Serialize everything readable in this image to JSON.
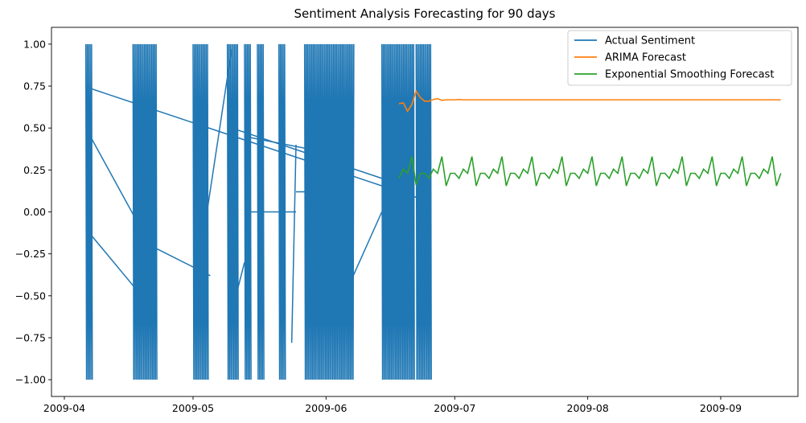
{
  "chart_data": {
    "type": "line",
    "title": "Sentiment Analysis Forecasting for 90 days",
    "xlabel": "",
    "ylabel": "",
    "x_axis": {
      "type": "date",
      "range": [
        "2009-03-29",
        "2009-09-19"
      ],
      "ticks": [
        {
          "date": "2009-04-01",
          "label": "2009-04"
        },
        {
          "date": "2009-05-01",
          "label": "2009-05"
        },
        {
          "date": "2009-06-01",
          "label": "2009-06"
        },
        {
          "date": "2009-07-01",
          "label": "2009-07"
        },
        {
          "date": "2009-08-01",
          "label": "2009-08"
        },
        {
          "date": "2009-09-01",
          "label": "2009-09"
        }
      ]
    },
    "y_axis": {
      "range": [
        -1.1,
        1.1
      ],
      "ticks": [
        {
          "value": 1.0,
          "label": "1.00"
        },
        {
          "value": 0.75,
          "label": "0.75"
        },
        {
          "value": 0.5,
          "label": "0.50"
        },
        {
          "value": 0.25,
          "label": "0.25"
        },
        {
          "value": 0.0,
          "label": "0.00"
        },
        {
          "value": -0.25,
          "label": "−0.25"
        },
        {
          "value": -0.5,
          "label": "−0.50"
        },
        {
          "value": -0.75,
          "label": "−0.75"
        },
        {
          "value": -1.0,
          "label": "−1.00"
        }
      ]
    },
    "grid": false,
    "legend_position": "top-right",
    "series": [
      {
        "name": "Actual Sentiment",
        "color": "#1f77b4",
        "style": "dense-oscillation",
        "active_periods": [
          {
            "start": "2009-04-06",
            "end": "2009-04-07"
          },
          {
            "start": "2009-04-17",
            "end": "2009-04-22"
          },
          {
            "start": "2009-05-01",
            "end": "2009-05-04"
          },
          {
            "start": "2009-05-09",
            "end": "2009-05-11"
          },
          {
            "start": "2009-05-13",
            "end": "2009-05-14"
          },
          {
            "start": "2009-05-16",
            "end": "2009-05-17"
          },
          {
            "start": "2009-05-21",
            "end": "2009-05-22"
          },
          {
            "start": "2009-05-27",
            "end": "2009-06-07"
          },
          {
            "start": "2009-06-14",
            "end": "2009-06-21"
          },
          {
            "start": "2009-06-22",
            "end": "2009-06-25"
          }
        ],
        "connectors": [
          {
            "x": [
              "2009-04-06",
              "2009-06-24"
            ],
            "y": [
              0.745,
              0.07
            ]
          },
          {
            "x": [
              "2009-04-06",
              "2009-04-21"
            ],
            "y": [
              0.5,
              -0.2
            ]
          },
          {
            "x": [
              "2009-04-06",
              "2009-04-19"
            ],
            "y": [
              -0.1,
              -0.5
            ]
          },
          {
            "x": [
              "2009-04-21",
              "2009-05-05"
            ],
            "y": [
              -0.2,
              -0.38
            ]
          },
          {
            "x": [
              "2009-05-02",
              "2009-05-10"
            ],
            "y": [
              -0.38,
              0.97
            ]
          },
          {
            "x": [
              "2009-05-10",
              "2009-06-14"
            ],
            "y": [
              0.5,
              0.2
            ]
          },
          {
            "x": [
              "2009-05-13",
              "2009-05-29"
            ],
            "y": [
              0.45,
              0.37
            ]
          },
          {
            "x": [
              "2009-05-13",
              "2009-05-25"
            ],
            "y": [
              0.0,
              0.0
            ]
          },
          {
            "x": [
              "2009-05-25",
              "2009-06-06"
            ],
            "y": [
              0.12,
              0.12
            ]
          },
          {
            "x": [
              "2009-05-24",
              "2009-05-25"
            ],
            "y": [
              -0.78,
              0.4
            ]
          },
          {
            "x": [
              "2009-06-07",
              "2009-06-14"
            ],
            "y": [
              -0.4,
              0.0
            ]
          },
          {
            "x": [
              "2009-05-10",
              "2009-05-13"
            ],
            "y": [
              -0.6,
              -0.3
            ]
          }
        ]
      },
      {
        "name": "ARIMA Forecast",
        "color": "#ff7f0e",
        "x_start": "2009-06-18",
        "step_days": 1,
        "values": [
          0.645,
          0.65,
          0.6,
          0.64,
          0.72,
          0.68,
          0.66,
          0.66,
          0.67,
          0.675,
          0.665,
          0.668,
          0.668,
          0.668,
          0.67,
          0.668,
          0.668,
          0.668,
          0.668,
          0.668,
          0.668,
          0.668,
          0.668,
          0.668,
          0.668,
          0.668,
          0.668,
          0.668,
          0.668,
          0.668,
          0.668,
          0.668,
          0.668,
          0.668,
          0.668,
          0.668,
          0.668,
          0.668,
          0.668,
          0.668,
          0.668,
          0.668,
          0.668,
          0.668,
          0.668,
          0.668,
          0.668,
          0.668,
          0.668,
          0.668,
          0.668,
          0.668,
          0.668,
          0.668,
          0.668,
          0.668,
          0.668,
          0.668,
          0.668,
          0.668,
          0.668,
          0.668,
          0.668,
          0.668,
          0.668,
          0.668,
          0.668,
          0.668,
          0.668,
          0.668,
          0.668,
          0.668,
          0.668,
          0.668,
          0.668,
          0.668,
          0.668,
          0.668,
          0.668,
          0.668,
          0.668,
          0.668,
          0.668,
          0.668,
          0.668,
          0.668,
          0.668,
          0.668,
          0.668,
          0.668
        ]
      },
      {
        "name": "Exponential Smoothing Forecast",
        "color": "#2ca02c",
        "x_start": "2009-06-18",
        "step_days": 1,
        "values": [
          0.2,
          0.255,
          0.23,
          0.33,
          0.16,
          0.23,
          0.23,
          0.2,
          0.255,
          0.23,
          0.33,
          0.155,
          0.23,
          0.23,
          0.2,
          0.255,
          0.23,
          0.33,
          0.155,
          0.23,
          0.23,
          0.2,
          0.255,
          0.23,
          0.33,
          0.155,
          0.23,
          0.23,
          0.2,
          0.255,
          0.23,
          0.33,
          0.155,
          0.23,
          0.23,
          0.2,
          0.255,
          0.23,
          0.33,
          0.155,
          0.23,
          0.23,
          0.2,
          0.255,
          0.23,
          0.33,
          0.155,
          0.23,
          0.23,
          0.2,
          0.255,
          0.23,
          0.33,
          0.155,
          0.23,
          0.23,
          0.2,
          0.255,
          0.23,
          0.33,
          0.155,
          0.23,
          0.23,
          0.2,
          0.255,
          0.23,
          0.33,
          0.155,
          0.23,
          0.23,
          0.2,
          0.255,
          0.23,
          0.33,
          0.155,
          0.23,
          0.23,
          0.2,
          0.255,
          0.23,
          0.33,
          0.155,
          0.23,
          0.23,
          0.2,
          0.255,
          0.23,
          0.33,
          0.155,
          0.23
        ]
      }
    ]
  }
}
